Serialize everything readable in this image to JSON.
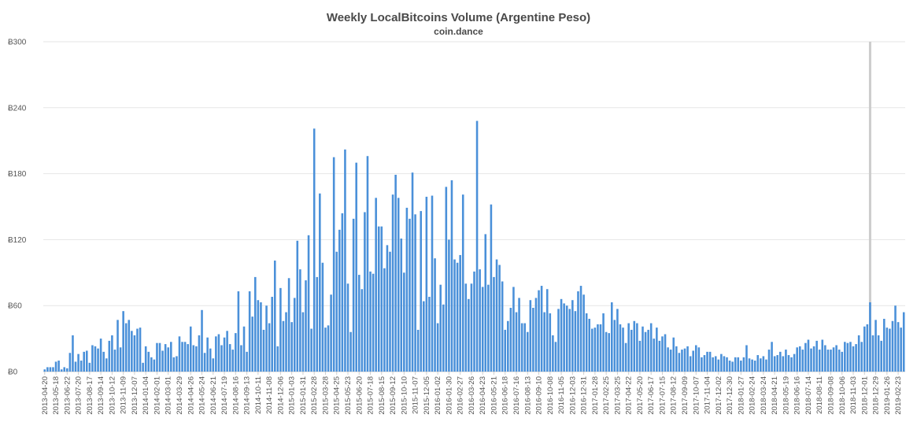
{
  "chart_data": {
    "type": "bar",
    "title": "Weekly LocalBitcoins Volume (Argentine Peso)",
    "subtitle": "coin.dance",
    "xlabel": "",
    "ylabel": "",
    "y_prefix": "Ƀ",
    "ylim": [
      0,
      300
    ],
    "yticks": [
      0,
      60,
      120,
      180,
      240,
      300
    ],
    "ytick_labels": [
      "Ƀ0",
      "Ƀ60",
      "Ƀ120",
      "Ƀ180",
      "Ƀ240",
      "Ƀ300"
    ],
    "grid": true,
    "series_color": "#4a90d9",
    "highlight_color": "#cccccc",
    "highlight_category_index": 294,
    "x_tick_labels": [
      "2013-04-20",
      "2013-05-18",
      "2013-06-22",
      "2013-07-20",
      "2013-08-17",
      "2013-09-14",
      "2013-10-12",
      "2013-11-09",
      "2013-12-07",
      "2014-01-04",
      "2014-02-01",
      "2014-03-01",
      "2014-03-29",
      "2014-04-26",
      "2014-05-24",
      "2014-06-21",
      "2014-07-19",
      "2014-08-16",
      "2014-09-13",
      "2014-10-11",
      "2014-11-08",
      "2014-12-06",
      "2015-01-03",
      "2015-01-31",
      "2015-02-28",
      "2015-03-28",
      "2015-04-25",
      "2015-05-23",
      "2015-06-20",
      "2015-07-18",
      "2015-08-15",
      "2015-09-12",
      "2015-10-10",
      "2015-11-07",
      "2015-12-05",
      "2016-01-02",
      "2016-01-30",
      "2016-02-27",
      "2016-03-26",
      "2016-04-23",
      "2016-05-21",
      "2016-06-18",
      "2016-07-16",
      "2016-08-13",
      "2016-09-10",
      "2016-10-08",
      "2016-11-05",
      "2016-12-03",
      "2016-12-31",
      "2017-01-28",
      "2017-02-25",
      "2017-03-25",
      "2017-04-22",
      "2017-05-20",
      "2017-06-17",
      "2017-07-15",
      "2017-08-12",
      "2017-09-09",
      "2017-10-07",
      "2017-11-04",
      "2017-12-02",
      "2017-12-30",
      "2018-01-27",
      "2018-02-24",
      "2018-03-24",
      "2018-04-21",
      "2018-05-19",
      "2018-06-16",
      "2018-07-14",
      "2018-08-11",
      "2018-09-08",
      "2018-10-06",
      "2018-11-03",
      "2018-12-01",
      "2018-12-29",
      "2019-01-26",
      "2019-02-23"
    ],
    "values": [
      2,
      4,
      4,
      4,
      9,
      10,
      2,
      4,
      3,
      17,
      33,
      9,
      16,
      10,
      18,
      19,
      8,
      24,
      23,
      21,
      30,
      18,
      12,
      28,
      33,
      20,
      47,
      22,
      55,
      44,
      47,
      37,
      33,
      39,
      40,
      8,
      23,
      18,
      13,
      11,
      26,
      26,
      19,
      25,
      22,
      27,
      13,
      14,
      32,
      27,
      27,
      25,
      41,
      24,
      23,
      33,
      56,
      17,
      31,
      21,
      12,
      32,
      34,
      24,
      31,
      37,
      25,
      20,
      35,
      73,
      24,
      41,
      18,
      73,
      50,
      86,
      65,
      63,
      38,
      60,
      44,
      68,
      101,
      23,
      76,
      46,
      54,
      85,
      45,
      67,
      119,
      93,
      54,
      83,
      124,
      39,
      221,
      86,
      162,
      99,
      40,
      42,
      70,
      195,
      109,
      129,
      144,
      202,
      80,
      36,
      139,
      190,
      88,
      75,
      145,
      196,
      91,
      89,
      158,
      132,
      132,
      94,
      115,
      109,
      161,
      179,
      158,
      121,
      90,
      149,
      139,
      181,
      143,
      38,
      146,
      64,
      159,
      68,
      160,
      103,
      44,
      79,
      61,
      168,
      120,
      174,
      102,
      99,
      106,
      161,
      80,
      66,
      80,
      91,
      228,
      93,
      77,
      125,
      79,
      152,
      86,
      102,
      97,
      82,
      38,
      46,
      58,
      77,
      54,
      67,
      44,
      44,
      36,
      65,
      58,
      67,
      74,
      78,
      54,
      75,
      53,
      33,
      27,
      57,
      66,
      62,
      60,
      57,
      65,
      55,
      73,
      78,
      70,
      53,
      48,
      39,
      40,
      43,
      43,
      53,
      36,
      35,
      63,
      47,
      57,
      43,
      40,
      26,
      44,
      38,
      46,
      44,
      28,
      41,
      36,
      38,
      44,
      30,
      40,
      28,
      32,
      34,
      22,
      20,
      31,
      23,
      17,
      20,
      21,
      23,
      14,
      19,
      24,
      22,
      13,
      15,
      18,
      18,
      13,
      14,
      11,
      16,
      14,
      13,
      10,
      9,
      13,
      13,
      10,
      13,
      24,
      12,
      11,
      10,
      15,
      12,
      14,
      11,
      20,
      27,
      14,
      15,
      18,
      14,
      20,
      15,
      13,
      16,
      22,
      23,
      20,
      26,
      29,
      21,
      23,
      28,
      20,
      29,
      24,
      20,
      20,
      22,
      24,
      20,
      18,
      27,
      26,
      27,
      23,
      25,
      33,
      27,
      41,
      43,
      63,
      33,
      47,
      33,
      28,
      48,
      40,
      39,
      46,
      60,
      45,
      40,
      54
    ]
  }
}
